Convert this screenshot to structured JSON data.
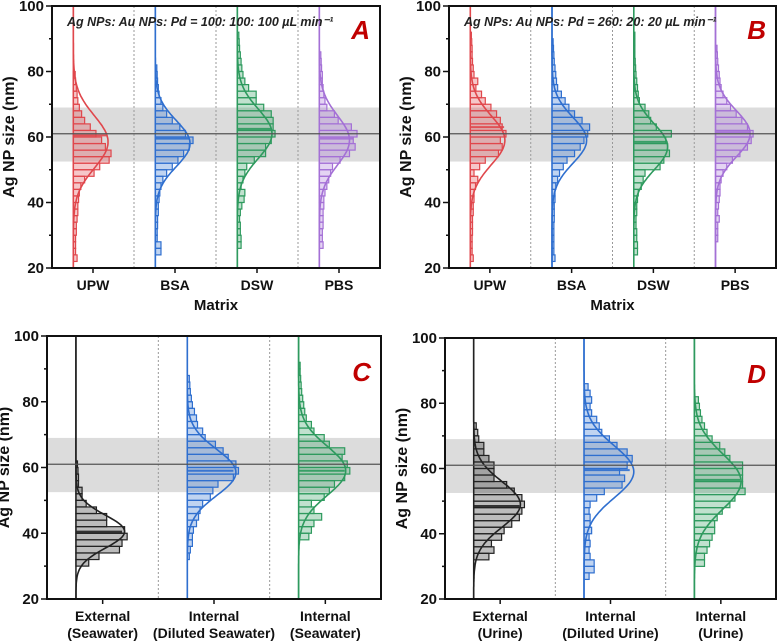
{
  "colors": {
    "UPW": "#e0474c",
    "BSA": "#2f6fcf",
    "DSW": "#2e9a5e",
    "PBS": "#a470d6",
    "External": "#222222",
    "Internal-diluted": "#2f6fcf",
    "Internal": "#2e9a5e",
    "letter": "#c00000",
    "band": "#dcdcdc"
  },
  "chart_data": [
    {
      "type": "histogram-violin",
      "panel_letter": "A",
      "annotation": "Ag NPs: Au NPs: Pd = 100: 100: 100 µL min⁻¹",
      "ylabel": "Ag NP size (nm)",
      "xlabel": "Matrix",
      "ylim": [
        20,
        100
      ],
      "yticks": [
        "20",
        "40",
        "60",
        "80",
        "100"
      ],
      "reference_line": 61,
      "reference_band": [
        52.5,
        69
      ],
      "bin_width_nm": 2,
      "series": [
        {
          "category": [
            "UPW"
          ],
          "color_key": "UPW",
          "mean": 60.5,
          "fit": {
            "mean": 58.5,
            "sd": 8,
            "peak": 0.92
          },
          "bin_start": 22,
          "values": [
            0.1,
            0.06,
            0.06,
            0.06,
            0.08,
            0.08,
            0.1,
            0.12,
            0.12,
            0.14,
            0.16,
            0.2,
            0.3,
            0.55,
            0.7,
            0.95,
            1.0,
            0.85,
            0.75,
            0.6,
            0.45,
            0.3,
            0.22,
            0.16,
            0.12,
            0.1,
            0.08,
            0.06,
            0.05
          ]
        },
        {
          "category": [
            "BSA"
          ],
          "color_key": "BSA",
          "mean": 59.5,
          "fit": {
            "mean": 58,
            "sd": 7,
            "peak": 0.92
          },
          "bin_start": 24,
          "values": [
            0.15,
            0.15,
            0.05,
            0.05,
            0.06,
            0.06,
            0.08,
            0.08,
            0.1,
            0.12,
            0.15,
            0.2,
            0.3,
            0.45,
            0.6,
            0.75,
            0.9,
            1.0,
            0.8,
            0.65,
            0.45,
            0.3,
            0.2,
            0.15,
            0.1,
            0.08,
            0.06,
            0.05,
            0.04
          ]
        },
        {
          "category": [
            "DSW"
          ],
          "color_key": "DSW",
          "mean": 62.5,
          "fit": {
            "mean": 61,
            "sd": 7.5,
            "peak": 0.92
          },
          "bin_start": 26,
          "values": [
            0.1,
            0.1,
            0.08,
            0.08,
            0.06,
            0.08,
            0.12,
            0.18,
            0.2,
            0.1,
            0.15,
            0.2,
            0.25,
            0.45,
            0.75,
            0.75,
            0.9,
            1.0,
            0.95,
            0.95,
            0.9,
            0.7,
            0.5,
            0.5,
            0.3,
            0.2,
            0.15,
            0.12,
            0.1,
            0.08,
            0.06,
            0.05,
            0.04
          ]
        },
        {
          "category": [
            "PBS"
          ],
          "color_key": "PBS",
          "mean": 59.5,
          "fit": {
            "mean": 59,
            "sd": 7.5,
            "peak": 0.8
          },
          "bin_start": 26,
          "values": [
            0.1,
            0.08,
            0.08,
            0.1,
            0.1,
            0.1,
            0.12,
            0.12,
            0.15,
            0.2,
            0.25,
            0.3,
            0.35,
            0.55,
            0.8,
            0.95,
            0.9,
            1.0,
            0.85,
            0.5,
            0.4,
            0.2,
            0.15,
            0.12,
            0.1,
            0.08,
            0.08,
            0.06,
            0.05,
            0.04
          ]
        }
      ]
    },
    {
      "type": "histogram-violin",
      "panel_letter": "B",
      "annotation": "Ag NPs: Au NPs: Pd = 260: 20: 20 µL min⁻¹",
      "ylabel": "Ag NP size (nm)",
      "xlabel": "Matrix",
      "ylim": [
        20,
        100
      ],
      "yticks": [
        "20",
        "40",
        "60",
        "80",
        "100"
      ],
      "reference_line": 61,
      "reference_band": [
        52.5,
        69
      ],
      "bin_width_nm": 2,
      "series": [
        {
          "category": [
            "UPW"
          ],
          "color_key": "UPW",
          "mean": 63,
          "fit": {
            "mean": 59,
            "sd": 7.5,
            "peak": 0.92
          },
          "bin_start": 22,
          "values": [
            0.08,
            0.05,
            0.05,
            0.05,
            0.06,
            0.06,
            0.06,
            0.08,
            0.08,
            0.1,
            0.1,
            0.14,
            0.2,
            0.1,
            0.25,
            0.4,
            0.75,
            0.85,
            0.8,
            0.95,
            0.85,
            0.8,
            0.7,
            0.55,
            0.4,
            0.3,
            0.15,
            0.2,
            0.1,
            0.08,
            0.06,
            0.05,
            0.05,
            0.04,
            0.03
          ]
        },
        {
          "category": [
            "BSA"
          ],
          "color_key": "BSA",
          "mean": 61,
          "fit": {
            "mean": 59,
            "sd": 7,
            "peak": 0.92
          },
          "bin_start": 22,
          "values": [
            0.08,
            0.05,
            0.05,
            0.05,
            0.05,
            0.05,
            0.06,
            0.06,
            0.06,
            0.08,
            0.08,
            0.1,
            0.15,
            0.2,
            0.3,
            0.4,
            0.6,
            0.75,
            0.85,
            0.95,
            1.0,
            0.8,
            0.6,
            0.45,
            0.35,
            0.25,
            0.15,
            0.12,
            0.1,
            0.08,
            0.06,
            0.05,
            0.04,
            0.03
          ]
        },
        {
          "category": [
            "DSW"
          ],
          "color_key": "DSW",
          "mean": 58.5,
          "fit": {
            "mean": 57,
            "sd": 7,
            "peak": 0.9
          },
          "bin_start": 24,
          "values": [
            0.1,
            0.1,
            0.08,
            0.08,
            0.06,
            0.06,
            0.08,
            0.08,
            0.1,
            0.12,
            0.2,
            0.25,
            0.3,
            0.7,
            0.8,
            0.95,
            0.9,
            0.85,
            1.0,
            0.6,
            0.45,
            0.4,
            0.3,
            0.15,
            0.12,
            0.1,
            0.08,
            0.06,
            0.05,
            0.04,
            0.03,
            0.03,
            0.03,
            0.03
          ]
        },
        {
          "category": [
            "PBS"
          ],
          "color_key": "PBS",
          "mean": 61.5,
          "fit": {
            "mean": 61,
            "sd": 7,
            "peak": 0.92
          },
          "bin_start": 28,
          "values": [
            0.06,
            0.06,
            0.06,
            0.1,
            0.06,
            0.08,
            0.1,
            0.12,
            0.12,
            0.15,
            0.2,
            0.3,
            0.45,
            0.65,
            0.85,
            0.95,
            1.0,
            0.85,
            0.7,
            0.55,
            0.4,
            0.3,
            0.2,
            0.15,
            0.12,
            0.1,
            0.08,
            0.06,
            0.05,
            0.04
          ]
        }
      ]
    },
    {
      "type": "histogram-violin",
      "panel_letter": "C",
      "annotation": "",
      "ylabel": "Ag NP size (nm)",
      "xlabel": "",
      "ylim": [
        20,
        100
      ],
      "yticks": [
        "20",
        "40",
        "60",
        "80",
        "100"
      ],
      "reference_line": 61,
      "reference_band": [
        52.5,
        69
      ],
      "bin_width_nm": 2,
      "series": [
        {
          "category": [
            "External",
            "(Seawater)"
          ],
          "color_key": "External",
          "mean": 40.5,
          "fit": {
            "mean": 40.5,
            "sd": 5,
            "peak": 0.95
          },
          "bin_start": 30,
          "values": [
            0.25,
            0.45,
            0.85,
            0.9,
            1.0,
            0.95,
            0.6,
            0.6,
            0.4,
            0.2,
            0.12,
            0.12,
            0.05,
            0.05,
            0.04,
            0.03
          ]
        },
        {
          "category": [
            "Internal",
            "(Diluted Seawater)"
          ],
          "color_key": "Internal-diluted",
          "mean": 59,
          "fit": {
            "mean": 58.5,
            "sd": 7,
            "peak": 0.95
          },
          "bin_start": 32,
          "values": [
            0.04,
            0.06,
            0.1,
            0.1,
            0.12,
            0.18,
            0.22,
            0.25,
            0.3,
            0.45,
            0.5,
            0.6,
            0.9,
            1.0,
            0.95,
            0.8,
            0.7,
            0.55,
            0.35,
            0.3,
            0.2,
            0.18,
            0.14,
            0.1,
            0.08,
            0.06,
            0.05,
            0.04
          ]
        },
        {
          "category": [
            "Internal",
            "(Seawater)"
          ],
          "color_key": "Internal",
          "mean": 59,
          "fit": {
            "mean": 59,
            "sd": 7.5,
            "peak": 0.92
          },
          "bin_start": 38,
          "values": [
            0.2,
            0.25,
            0.3,
            0.45,
            0.3,
            0.25,
            0.5,
            0.6,
            0.7,
            0.9,
            1.0,
            0.95,
            0.85,
            0.9,
            0.6,
            0.5,
            0.3,
            0.25,
            0.15,
            0.12,
            0.1,
            0.08,
            0.06,
            0.05,
            0.04,
            0.03,
            0.03
          ]
        }
      ]
    },
    {
      "type": "histogram-violin",
      "panel_letter": "D",
      "annotation": "",
      "ylabel": "Ag NP size (nm)",
      "xlabel": "",
      "ylim": [
        20,
        100
      ],
      "yticks": [
        "20",
        "40",
        "60",
        "80",
        "100"
      ],
      "reference_line": 61,
      "reference_band": [
        52.5,
        69
      ],
      "bin_width_nm": 2,
      "series": [
        {
          "category": [
            "External",
            "(Urine)"
          ],
          "color_key": "External",
          "mean": 48.5,
          "fit": {
            "mean": 49,
            "sd": 7,
            "peak": 0.92
          },
          "bin_start": 32,
          "values": [
            0.3,
            0.4,
            0.35,
            0.55,
            0.6,
            0.75,
            0.9,
            0.95,
            1.0,
            0.95,
            0.8,
            0.65,
            0.4,
            0.4,
            0.4,
            0.3,
            0.2,
            0.2,
            0.1,
            0.08,
            0.05
          ]
        },
        {
          "category": [
            "Internal",
            "(Diluted Urine)"
          ],
          "color_key": "Internal-diluted",
          "mean": 59.5,
          "fit": {
            "mean": 59,
            "sd": 8,
            "peak": 0.98
          },
          "bin_start": 26,
          "values": [
            0.1,
            0.2,
            0.2,
            0.12,
            0.1,
            0.12,
            0.1,
            0.15,
            0.12,
            0.12,
            0.1,
            0.12,
            0.25,
            0.4,
            0.75,
            0.8,
            0.7,
            0.85,
            0.95,
            0.85,
            0.65,
            0.5,
            0.35,
            0.3,
            0.25,
            0.15,
            0.12,
            0.15,
            0.12,
            0.08
          ]
        },
        {
          "category": [
            "Internal",
            "(Urine)"
          ],
          "color_key": "Internal",
          "mean": 56.5,
          "fit": {
            "mean": 56,
            "sd": 8.5,
            "peak": 0.92
          },
          "bin_start": 30,
          "values": [
            0.2,
            0.2,
            0.25,
            0.3,
            0.35,
            0.4,
            0.4,
            0.45,
            0.55,
            0.7,
            0.8,
            1.0,
            0.95,
            0.95,
            0.95,
            0.95,
            0.7,
            0.6,
            0.5,
            0.35,
            0.25,
            0.2,
            0.15,
            0.12,
            0.1,
            0.08
          ]
        }
      ]
    }
  ]
}
